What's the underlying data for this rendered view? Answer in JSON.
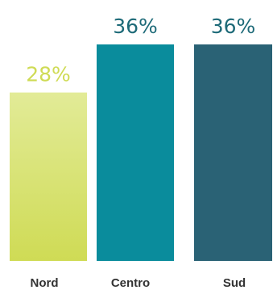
{
  "chart_data": {
    "type": "bar",
    "categories": [
      "Nord",
      "Centro",
      "Sud"
    ],
    "values": [
      28,
      36,
      36
    ],
    "data_labels": [
      "28%",
      "36%",
      "36%"
    ],
    "colors": [
      "#cfdb55",
      "#0a8c9c",
      "#2a6275"
    ],
    "gradient_top_color_first_bar": "#e2eb97",
    "label_colors": [
      "#cfdb55",
      "#1d6a78",
      "#1d6a78"
    ],
    "ylim": [
      0,
      36
    ],
    "title": "",
    "xlabel": "",
    "ylabel": "",
    "grid": false,
    "legend": "none"
  }
}
